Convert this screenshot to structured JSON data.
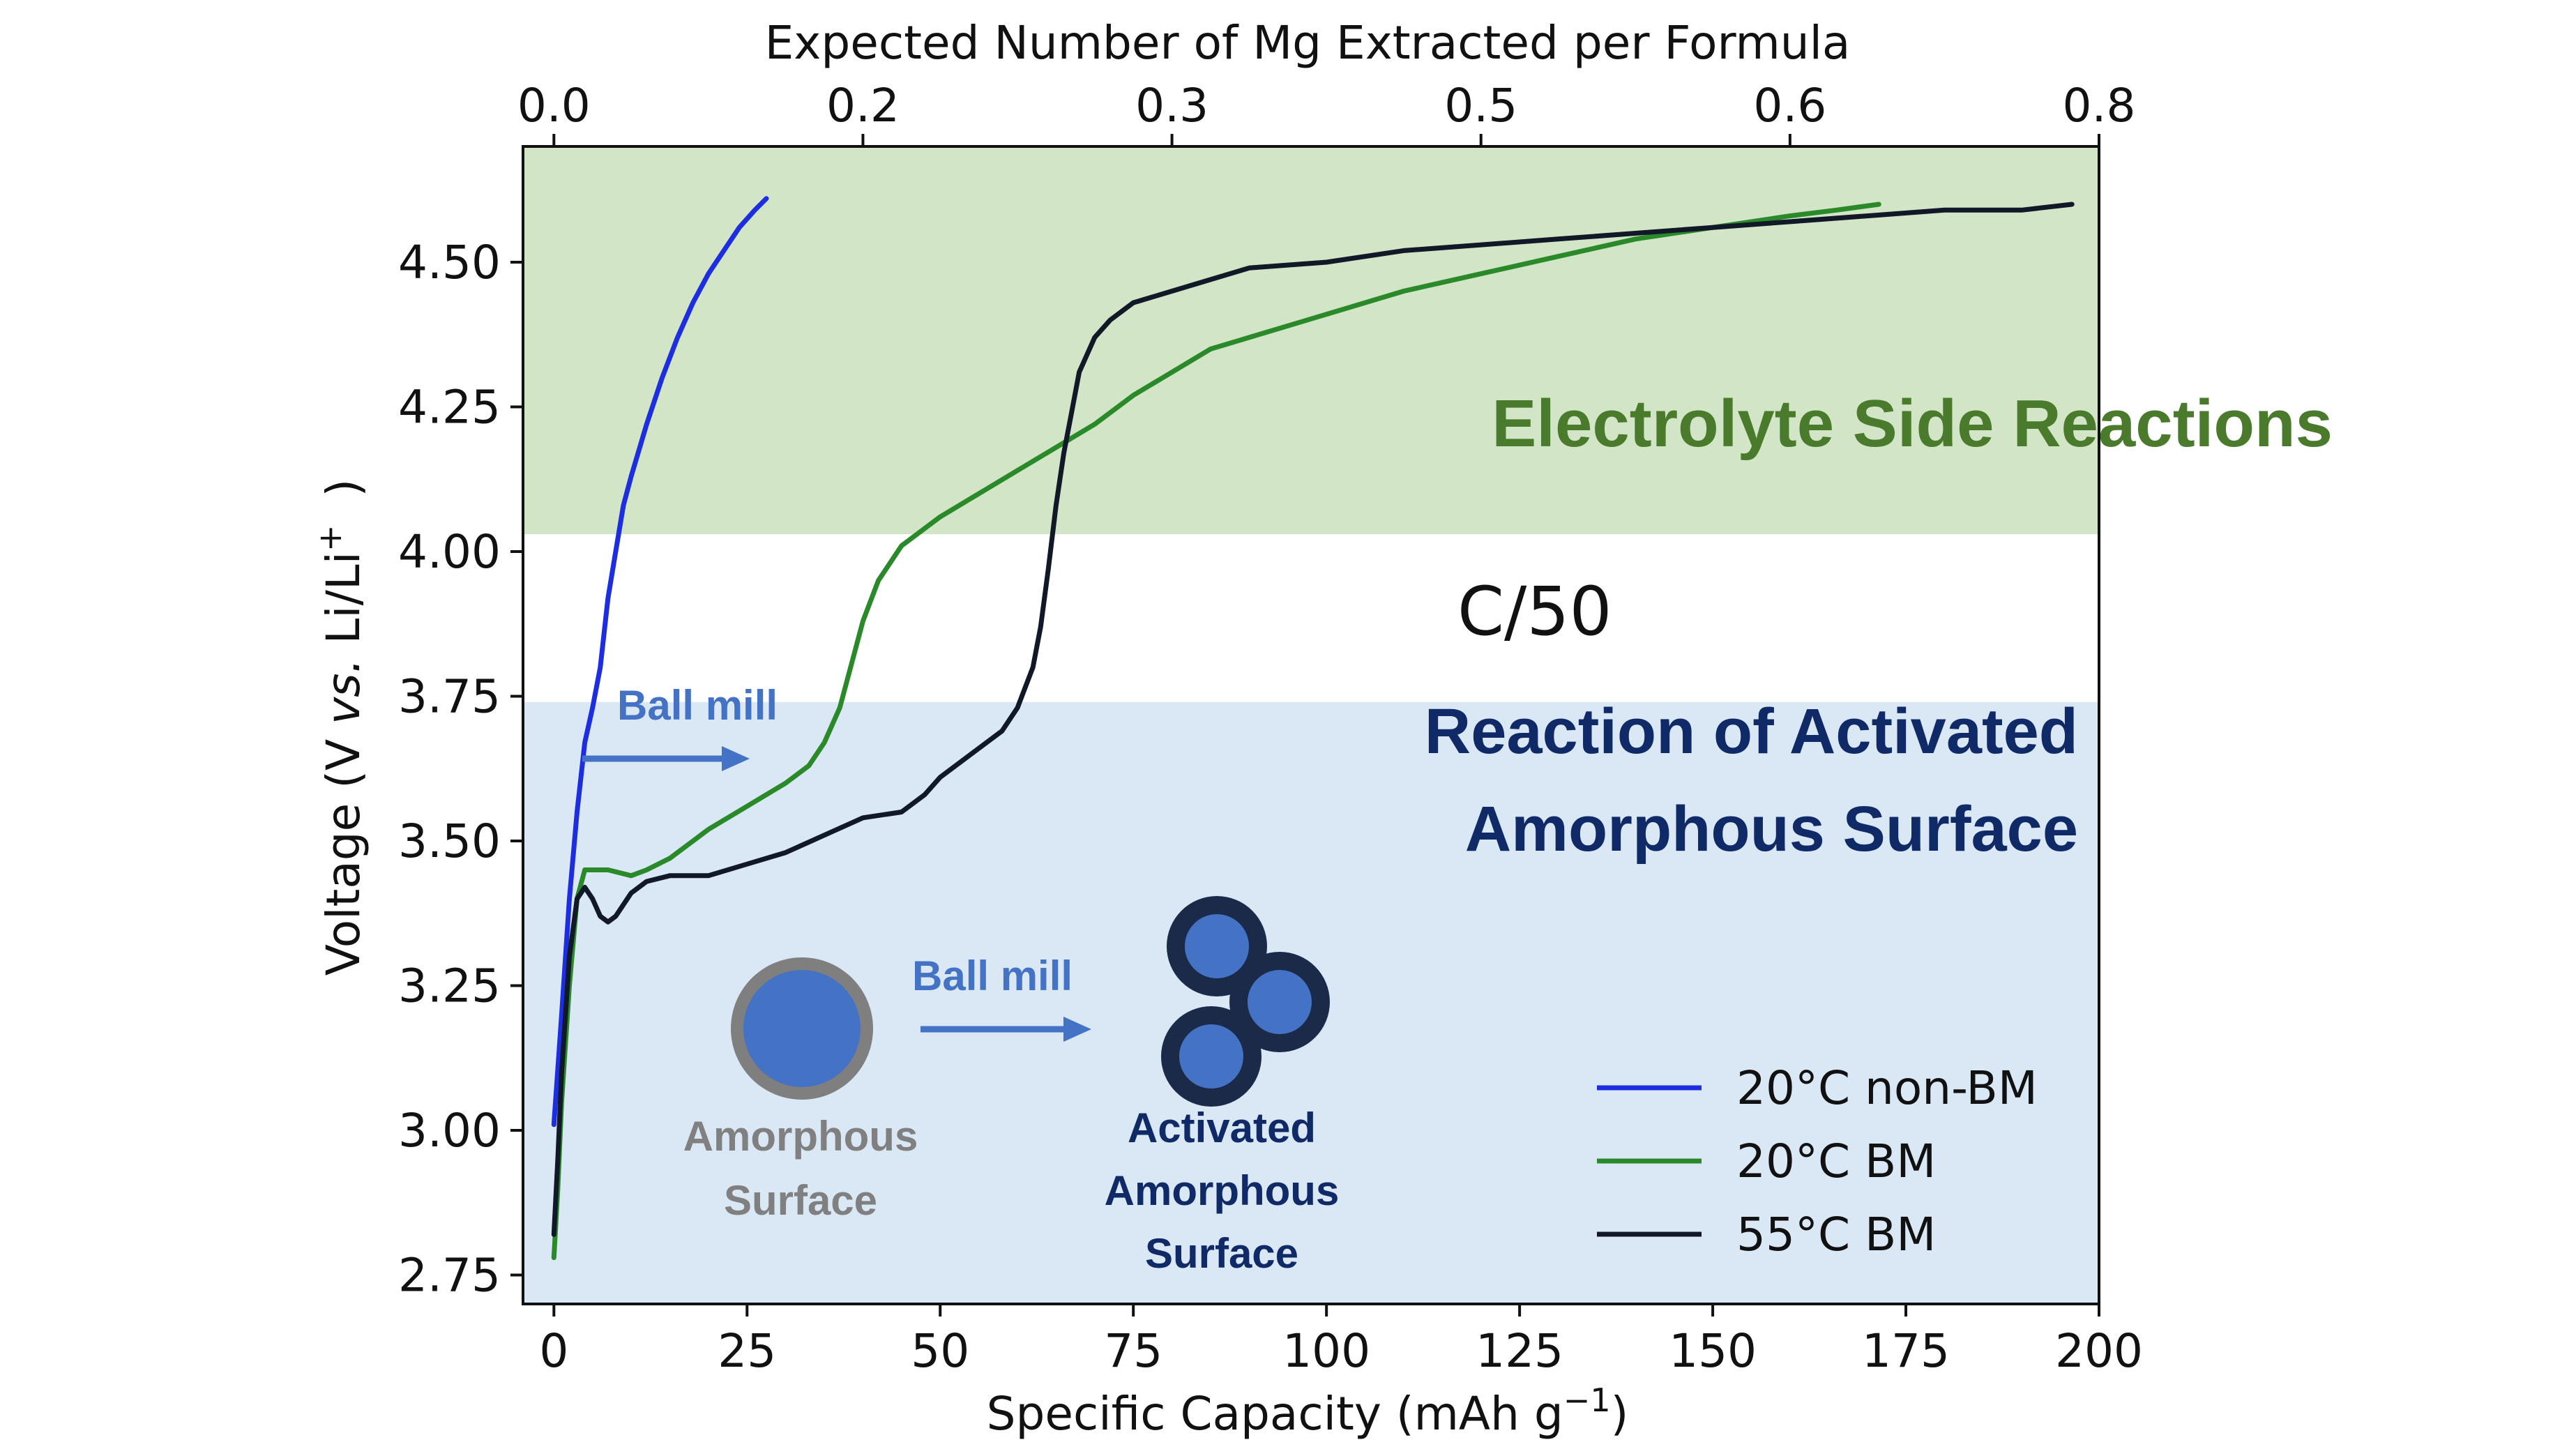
{
  "chart_data": {
    "type": "line",
    "xlabel": "Specific Capacity (mAh g",
    "xlabel_sup": "−1",
    "xlabel_end": ")",
    "x2label": "Expected Number of Mg Extracted per Formula",
    "ylabel_pre": "Voltage (V ",
    "ylabel_vs": "vs.",
    "ylabel_post": " Li/Li",
    "ylabel_sup": "+",
    "ylabel_end": ")",
    "xlim": [
      -4,
      200
    ],
    "ylim": [
      2.7,
      4.7
    ],
    "x_ticks": [
      "0",
      "25",
      "50",
      "75",
      "100",
      "125",
      "150",
      "175",
      "200"
    ],
    "y_ticks": [
      "2.75",
      "3.00",
      "3.25",
      "3.50",
      "3.75",
      "4.00",
      "4.25",
      "4.50"
    ],
    "x2_ticks": [
      "0.0",
      "0.2",
      "0.3",
      "0.5",
      "0.6",
      "0.8"
    ],
    "x2_tick_positions": [
      0,
      40,
      80,
      120,
      160,
      200
    ],
    "bands": [
      {
        "name": "electrolyte",
        "y0": 4.03,
        "y1": 4.7,
        "color": "#d2e5c6"
      },
      {
        "name": "amorphous",
        "y0": 2.7,
        "y1": 3.74,
        "color": "#dae8f5"
      }
    ],
    "series": [
      {
        "name": "20°C non-BM",
        "color": "#1c2ee0",
        "x": [
          0,
          1,
          2,
          3,
          4,
          5,
          6,
          7,
          8,
          9,
          10,
          12,
          14,
          16,
          18,
          20,
          22,
          24,
          26,
          27.5
        ],
        "y": [
          3.01,
          3.2,
          3.4,
          3.55,
          3.67,
          3.73,
          3.8,
          3.92,
          4.0,
          4.08,
          4.13,
          4.22,
          4.3,
          4.37,
          4.43,
          4.48,
          4.52,
          4.56,
          4.59,
          4.61
        ]
      },
      {
        "name": "20°C BM",
        "color": "#2a8a2a",
        "x": [
          0,
          0.5,
          1,
          2,
          3,
          4,
          5,
          7,
          10,
          12,
          15,
          20,
          25,
          30,
          33,
          35,
          37,
          38,
          40,
          42,
          45,
          50,
          55,
          60,
          65,
          70,
          75,
          80,
          85,
          90,
          100,
          110,
          120,
          130,
          140,
          150,
          160,
          166,
          171.5
        ],
        "y": [
          2.78,
          2.9,
          3.05,
          3.25,
          3.4,
          3.45,
          3.45,
          3.45,
          3.44,
          3.45,
          3.47,
          3.52,
          3.56,
          3.6,
          3.63,
          3.67,
          3.73,
          3.78,
          3.88,
          3.95,
          4.01,
          4.06,
          4.1,
          4.14,
          4.18,
          4.22,
          4.27,
          4.31,
          4.35,
          4.37,
          4.41,
          4.45,
          4.48,
          4.51,
          4.54,
          4.56,
          4.58,
          4.59,
          4.6
        ]
      },
      {
        "name": "55°C BM",
        "color": "#111827",
        "x": [
          0,
          0.5,
          1,
          2,
          3,
          4,
          5,
          6,
          7,
          8,
          10,
          12,
          15,
          20,
          25,
          30,
          35,
          40,
          45,
          48,
          50,
          55,
          58,
          60,
          62,
          63,
          64,
          65,
          66,
          67,
          68,
          70,
          72,
          75,
          80,
          85,
          90,
          100,
          110,
          120,
          130,
          140,
          150,
          160,
          170,
          180,
          190,
          196.5
        ],
        "y": [
          2.82,
          2.95,
          3.1,
          3.3,
          3.4,
          3.42,
          3.4,
          3.37,
          3.36,
          3.37,
          3.41,
          3.43,
          3.44,
          3.44,
          3.46,
          3.48,
          3.51,
          3.54,
          3.55,
          3.58,
          3.61,
          3.66,
          3.69,
          3.73,
          3.8,
          3.87,
          3.97,
          4.08,
          4.17,
          4.24,
          4.31,
          4.37,
          4.4,
          4.43,
          4.45,
          4.47,
          4.49,
          4.5,
          4.52,
          4.53,
          4.54,
          4.55,
          4.56,
          4.57,
          4.58,
          4.59,
          4.59,
          4.6
        ]
      }
    ],
    "legend_position": "lower-right"
  },
  "annotations": {
    "electrolyte_label": "Electrolyte Side Reactions",
    "rate_label": "C/50",
    "reaction_line1": "Reaction of Activated",
    "reaction_line2": "Amorphous Surface",
    "ballmill_top": "Ball mill",
    "ballmill_mid": "Ball mill",
    "amorphous_line1": "Amorphous",
    "amorphous_line2": "Surface",
    "activated_line1": "Activated",
    "activated_line2": "Amorphous",
    "activated_line3": "Surface"
  },
  "colors": {
    "electrolyte_text": "#4a7a2c",
    "reaction_text": "#0f2a66",
    "ballmill_text": "#4472c4",
    "arrow": "#4472c4",
    "amorphous_text": "#808080",
    "particle_core": "#4472c4",
    "particle_shell_grey": "#7f7f7f",
    "particle_shell_dark": "#1c2a4a",
    "activated_text": "#0f2a66"
  }
}
